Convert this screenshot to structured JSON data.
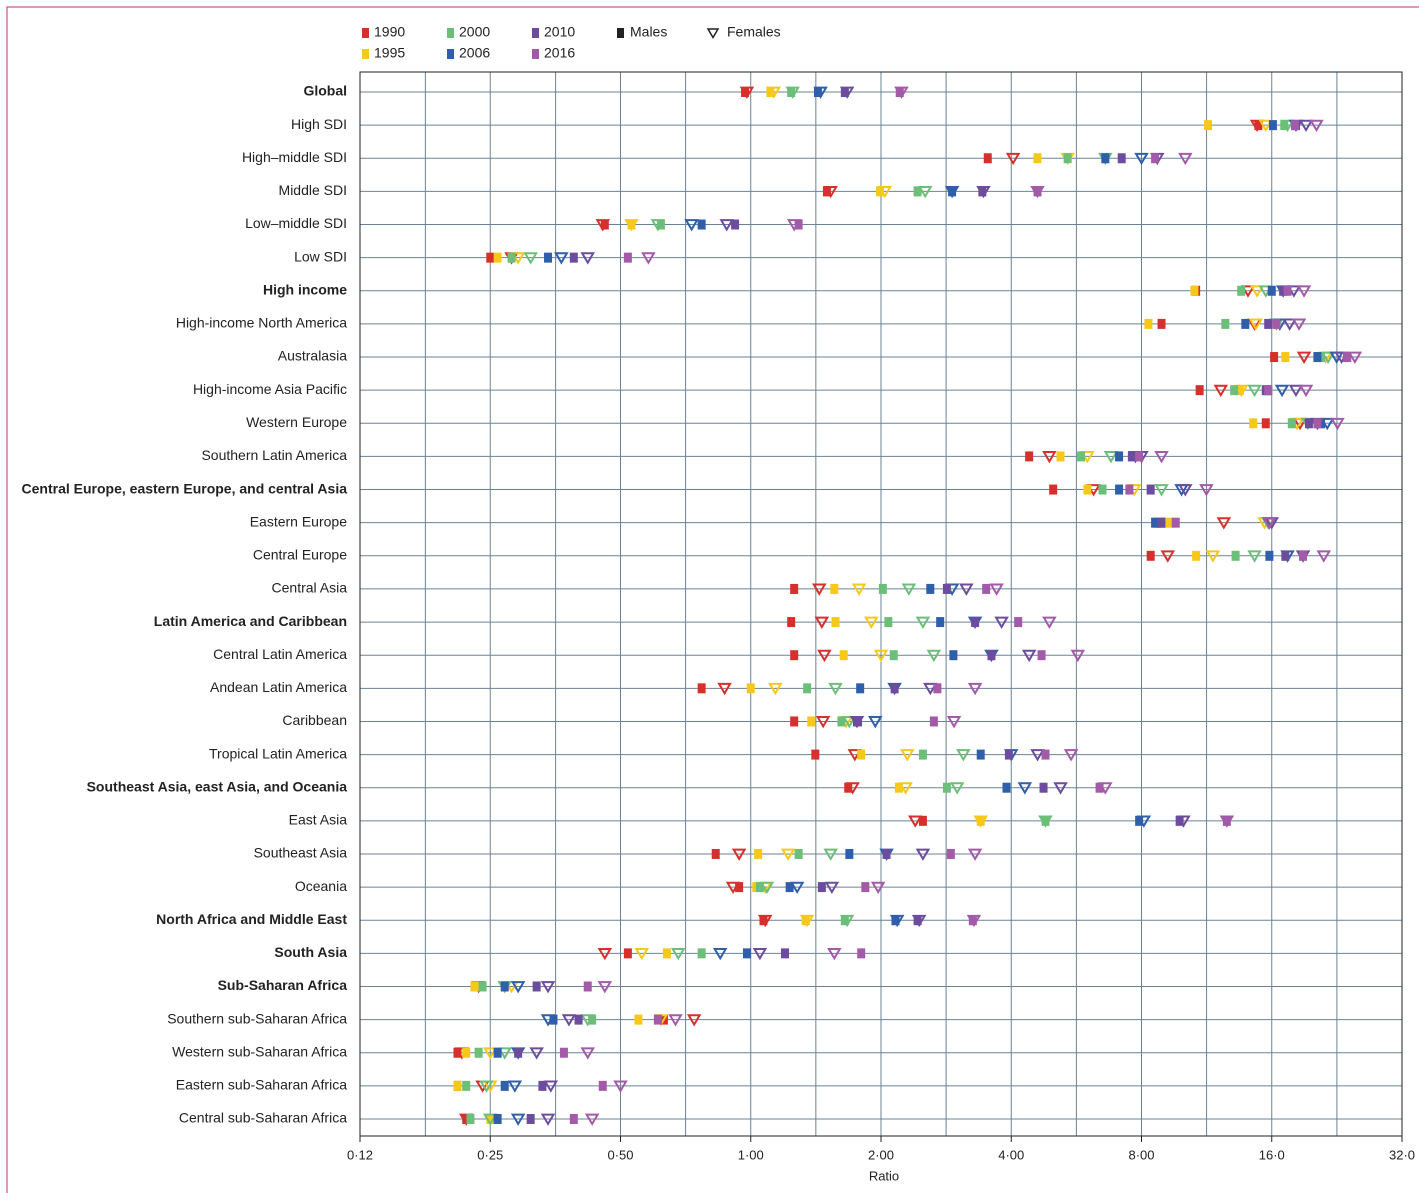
{
  "chart_data": {
    "type": "dot",
    "xlabel": "Ratio",
    "xscale": "log",
    "xlim": [
      0.125,
      32
    ],
    "xticks": [
      {
        "value": 0.125,
        "label": "0·12"
      },
      {
        "value": 0.25,
        "label": "0·25"
      },
      {
        "value": 0.5,
        "label": "0·50"
      },
      {
        "value": 1,
        "label": "1·00"
      },
      {
        "value": 2,
        "label": "2·00"
      },
      {
        "value": 4,
        "label": "4·00"
      },
      {
        "value": 8,
        "label": "8·00"
      },
      {
        "value": 16,
        "label": "16·0"
      },
      {
        "value": 32,
        "label": "32·0"
      }
    ],
    "minor_xticks": [
      0.177,
      0.354,
      0.707,
      1.414,
      2.828,
      5.657,
      11.31,
      22.63
    ],
    "grid": true,
    "categories": [
      "Global",
      "High SDI",
      "High–middle SDI",
      "Middle SDI",
      "Low–middle SDI",
      "Low SDI",
      "High income",
      "High-income North America",
      "Australasia",
      "High-income Asia Pacific",
      "Western Europe",
      "Southern Latin America",
      "Central Europe, eastern Europe, and central Asia",
      "Eastern Europe",
      "Central Europe",
      "Central Asia",
      "Latin America and Caribbean",
      "Central Latin America",
      "Andean Latin America",
      "Caribbean",
      "Tropical Latin America",
      "Southeast Asia, east Asia, and Oceania",
      "East Asia",
      "Southeast Asia",
      "Oceania",
      "North Africa and Middle East",
      "South Asia",
      "Sub-Saharan Africa",
      "Southern sub-Saharan Africa",
      "Western sub-Saharan Africa",
      "Eastern sub-Saharan Africa",
      "Central sub-Saharan Africa"
    ],
    "bold": [
      true,
      false,
      false,
      false,
      false,
      false,
      true,
      false,
      false,
      false,
      false,
      false,
      true,
      false,
      false,
      false,
      true,
      false,
      false,
      false,
      false,
      true,
      false,
      false,
      false,
      true,
      true,
      true,
      false,
      false,
      false,
      false
    ],
    "marker_legend": [
      "Males",
      "Females"
    ],
    "series": [
      {
        "name": "1990",
        "color": "#d7302c",
        "males": [
          0.97,
          14.9,
          3.53,
          1.5,
          0.46,
          0.25,
          10.7,
          8.9,
          16.2,
          10.9,
          15.5,
          4.4,
          5.0,
          8.9,
          8.4,
          1.26,
          1.24,
          1.26,
          0.77,
          1.26,
          1.41,
          1.68,
          2.5,
          0.83,
          0.94,
          1.07,
          0.52,
          0.23,
          0.63,
          0.21,
          0.21,
          0.22
        ],
        "females": [
          0.98,
          14.8,
          4.04,
          1.53,
          0.455,
          0.28,
          14.1,
          14.6,
          19.0,
          12.2,
          18.6,
          4.9,
          6.2,
          12.4,
          9.2,
          1.44,
          1.46,
          1.48,
          0.87,
          1.47,
          1.74,
          1.72,
          2.4,
          0.94,
          0.91,
          1.08,
          0.46,
          0.235,
          0.74,
          0.215,
          0.24,
          0.22
        ]
      },
      {
        "name": "1995",
        "color": "#f6c919",
        "males": [
          1.11,
          11.4,
          4.6,
          1.99,
          0.53,
          0.26,
          10.6,
          8.3,
          17.2,
          13.5,
          14.5,
          5.2,
          6.0,
          9.3,
          10.7,
          1.56,
          1.57,
          1.64,
          1.0,
          1.38,
          1.8,
          2.2,
          3.4,
          1.04,
          1.03,
          1.34,
          0.64,
          0.23,
          0.55,
          0.22,
          0.21,
          0.25
        ],
        "females": [
          1.13,
          15.5,
          5.4,
          2.04,
          0.53,
          0.29,
          14.8,
          14.7,
          21.3,
          13.6,
          18.3,
          6.0,
          7.7,
          15.4,
          11.7,
          1.78,
          1.9,
          2.0,
          1.14,
          1.66,
          2.3,
          2.28,
          3.4,
          1.22,
          1.08,
          1.35,
          0.56,
          0.28,
          0.62,
          0.25,
          0.25,
          0.25
        ]
      },
      {
        "name": "2000",
        "color": "#6cbf78",
        "males": [
          1.24,
          17.1,
          5.4,
          2.43,
          0.62,
          0.28,
          13.6,
          12.5,
          20.8,
          13.1,
          17.8,
          5.8,
          6.5,
          8.7,
          13.2,
          2.02,
          2.08,
          2.14,
          1.35,
          1.62,
          2.5,
          2.84,
          4.8,
          1.29,
          1.05,
          1.65,
          0.77,
          0.24,
          0.43,
          0.235,
          0.22,
          0.225
        ],
        "females": [
          1.25,
          17.4,
          6.6,
          2.53,
          0.61,
          0.31,
          15.5,
          16.4,
          21.6,
          14.6,
          19.4,
          6.8,
          8.9,
          15.7,
          14.6,
          2.32,
          2.5,
          2.65,
          1.57,
          1.69,
          3.1,
          3.0,
          4.8,
          1.53,
          1.09,
          1.67,
          0.68,
          0.27,
          0.42,
          0.27,
          0.245,
          0.25
        ]
      },
      {
        "name": "2006",
        "color": "#2f5fab",
        "males": [
          1.43,
          16.1,
          6.6,
          2.92,
          0.77,
          0.34,
          16.0,
          13.9,
          20.4,
          15.7,
          20.8,
          7.1,
          7.1,
          8.6,
          15.8,
          2.6,
          2.74,
          2.94,
          1.79,
          1.76,
          3.4,
          3.9,
          7.9,
          1.69,
          1.23,
          2.16,
          0.98,
          0.27,
          0.35,
          0.26,
          0.27,
          0.26
        ],
        "females": [
          1.45,
          18.2,
          8.0,
          2.92,
          0.73,
          0.365,
          17.0,
          16.7,
          22.6,
          16.9,
          21.5,
          7.75,
          9.9,
          15.8,
          17.4,
          2.92,
          3.3,
          3.6,
          2.15,
          1.94,
          4.0,
          4.3,
          8.1,
          2.06,
          1.28,
          2.18,
          0.85,
          0.29,
          0.34,
          0.29,
          0.285,
          0.29
        ]
      },
      {
        "name": "2010",
        "color": "#6c4c9f",
        "males": [
          1.65,
          18.2,
          7.2,
          3.43,
          0.92,
          0.39,
          17.0,
          15.7,
          23.9,
          15.5,
          19.5,
          7.6,
          8.4,
          8.9,
          17.2,
          2.84,
          3.3,
          3.6,
          2.15,
          1.77,
          3.95,
          4.75,
          9.8,
          2.06,
          1.46,
          2.43,
          1.2,
          0.32,
          0.4,
          0.29,
          0.33,
          0.31
        ],
        "females": [
          1.67,
          19.2,
          8.7,
          3.45,
          0.88,
          0.42,
          18.0,
          17.6,
          23.2,
          18.2,
          20.4,
          8.0,
          10.1,
          16.0,
          18.9,
          3.15,
          3.8,
          4.4,
          2.6,
          1.76,
          4.6,
          5.2,
          10.0,
          2.5,
          1.54,
          2.45,
          1.05,
          0.34,
          0.38,
          0.32,
          0.345,
          0.34
        ]
      },
      {
        "name": "2016",
        "color": "#a35aa8",
        "males": [
          2.21,
          18.1,
          8.6,
          4.6,
          1.29,
          0.52,
          17.4,
          16.4,
          23.9,
          15.7,
          20.4,
          7.9,
          7.5,
          9.6,
          18.9,
          3.5,
          4.15,
          4.7,
          2.7,
          2.65,
          4.8,
          6.4,
          12.6,
          2.9,
          1.84,
          3.26,
          1.8,
          0.42,
          0.61,
          0.37,
          0.455,
          0.39
        ],
        "females": [
          2.23,
          20.3,
          10.1,
          4.6,
          1.26,
          0.58,
          19.0,
          18.5,
          24.9,
          19.2,
          22.7,
          8.9,
          11.3,
          15.8,
          21.1,
          3.7,
          4.9,
          5.7,
          3.3,
          2.95,
          5.5,
          6.6,
          12.6,
          3.3,
          1.97,
          3.28,
          1.56,
          0.46,
          0.67,
          0.42,
          0.5,
          0.43
        ]
      }
    ]
  }
}
